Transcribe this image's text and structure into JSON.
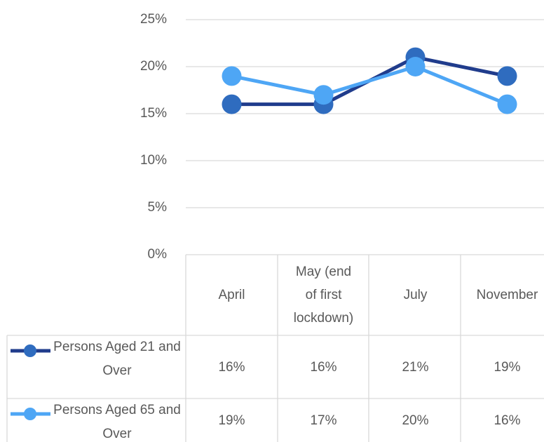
{
  "chart_data": {
    "type": "line",
    "categories": [
      "April",
      "May (end of first lockdown)",
      "July",
      "November"
    ],
    "series": [
      {
        "name": "Persons Aged 21 and Over",
        "color": "#203c8c",
        "marker_color": "#2f6cbf",
        "values": [
          16,
          16,
          21,
          19
        ],
        "value_labels": [
          "16%",
          "16%",
          "21%",
          "19%"
        ]
      },
      {
        "name": "Persons Aged 65 and Over",
        "color": "#4ea6f5",
        "marker_color": "#4ea6f5",
        "values": [
          19,
          17,
          20,
          16
        ],
        "value_labels": [
          "19%",
          "17%",
          "20%",
          "16%"
        ]
      }
    ],
    "ylim": [
      0,
      25
    ],
    "yticks": [
      {
        "value": 0,
        "label": "0%"
      },
      {
        "value": 5,
        "label": "5%"
      },
      {
        "value": 10,
        "label": "10%"
      },
      {
        "value": 15,
        "label": "15%"
      },
      {
        "value": 20,
        "label": "20%"
      },
      {
        "value": 25,
        "label": "25%"
      }
    ],
    "grid": true
  }
}
